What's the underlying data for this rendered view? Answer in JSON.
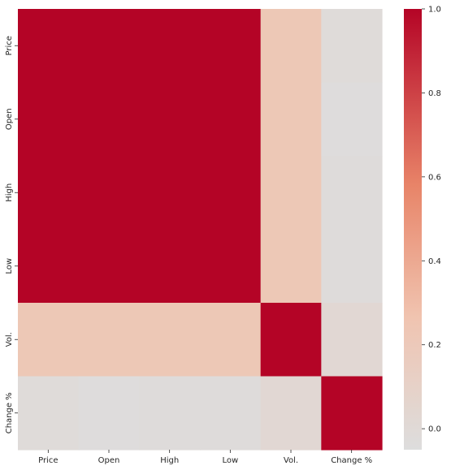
{
  "chart_data": {
    "type": "heatmap",
    "title": "",
    "xlabel": "",
    "ylabel": "",
    "row_labels": [
      "Price",
      "Open",
      "High",
      "Low",
      "Vol.",
      "Change %"
    ],
    "col_labels": [
      "Price",
      "Open",
      "High",
      "Low",
      "Vol.",
      "Change %"
    ],
    "values": [
      [
        1.0,
        1.0,
        1.0,
        1.0,
        0.22,
        -0.02
      ],
      [
        1.0,
        1.0,
        1.0,
        1.0,
        0.22,
        -0.04
      ],
      [
        1.0,
        1.0,
        1.0,
        1.0,
        0.22,
        -0.03
      ],
      [
        1.0,
        1.0,
        1.0,
        1.0,
        0.22,
        -0.03
      ],
      [
        0.22,
        0.22,
        0.22,
        0.22,
        1.0,
        0.02
      ],
      [
        -0.02,
        -0.04,
        -0.03,
        -0.03,
        0.02,
        1.0
      ]
    ],
    "colormap": "coolwarm",
    "vmin": -0.05,
    "vmax": 1.0,
    "colorbar": {
      "ticks": [
        "0.0",
        "0.2",
        "0.4",
        "0.6",
        "0.8",
        "1.0"
      ],
      "tick_values": [
        0.0,
        0.2,
        0.4,
        0.6,
        0.8,
        1.0
      ]
    },
    "grid": false,
    "legend": "colorbar-right"
  }
}
